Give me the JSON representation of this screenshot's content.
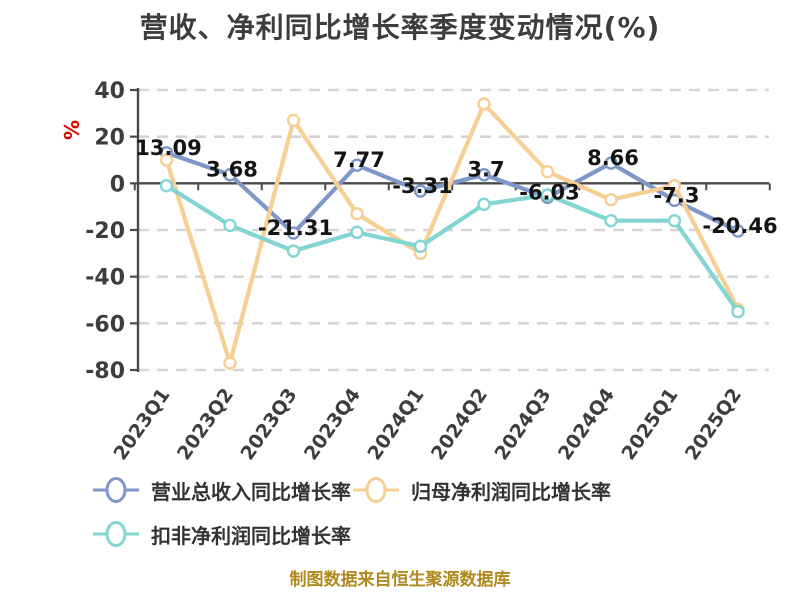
{
  "title": "营收、净利同比增长率季度变动情况(%)",
  "footer": "制图数据来自恒生聚源数据库",
  "colors": {
    "background": "#ffffff",
    "title_text": "#3d3d3d",
    "axis_line": "#4a4a4a",
    "grid_line": "#d5d5d5",
    "tick_label": "#3d3d3d",
    "point_label": "#141414",
    "unit_label": "#e00000",
    "footer_text": "#b08a1e",
    "series_revenue": "#7e96c8",
    "series_net_profit": "#f7cf93",
    "series_deducted_profit": "#82d5d2"
  },
  "legend": {
    "items": [
      {
        "label": "营业总收入同比增长率",
        "color": "#7e96c8"
      },
      {
        "label": "归母净利润同比增长率",
        "color": "#f7cf93"
      },
      {
        "label": "扣非净利润同比增长率",
        "color": "#82d5d2"
      }
    ]
  },
  "chart_data": {
    "type": "line",
    "title": "营收、净利同比增长率季度变动情况(%)",
    "categories": [
      "2023Q1",
      "2023Q2",
      "2023Q3",
      "2023Q4",
      "2024Q1",
      "2024Q2",
      "2024Q3",
      "2024Q4",
      "2025Q1",
      "2025Q2"
    ],
    "series": [
      {
        "name": "营业总收入同比增长率",
        "color": "#7e96c8",
        "values": [
          13.09,
          3.68,
          -21.31,
          7.77,
          -3.31,
          3.7,
          -6.03,
          8.66,
          -7.3,
          -20.46
        ],
        "point_labels": [
          "13.09",
          "3.68",
          "-21.31",
          "7.77",
          "-3.31",
          "3.7",
          "-6.03",
          "8.66",
          "-7.3",
          "-20.46"
        ]
      },
      {
        "name": "归母净利润同比增长率",
        "color": "#f7cf93",
        "values": [
          10,
          -77,
          27,
          -13,
          -30,
          34,
          5,
          -7,
          -1,
          -54
        ]
      },
      {
        "name": "扣非净利润同比增长率",
        "color": "#82d5d2",
        "values": [
          -1,
          -18,
          -29,
          -21,
          -27,
          -9,
          -5,
          -16,
          -16,
          -55
        ]
      }
    ],
    "xlabel": "",
    "ylabel": "%",
    "y_axis": {
      "min": -80,
      "max": 40,
      "step": 20,
      "tick_labels": [
        "40",
        "20",
        "0",
        "-20",
        "-40",
        "-60",
        "-80"
      ]
    },
    "grid": "horizontal dashed",
    "legend_position": "bottom"
  }
}
